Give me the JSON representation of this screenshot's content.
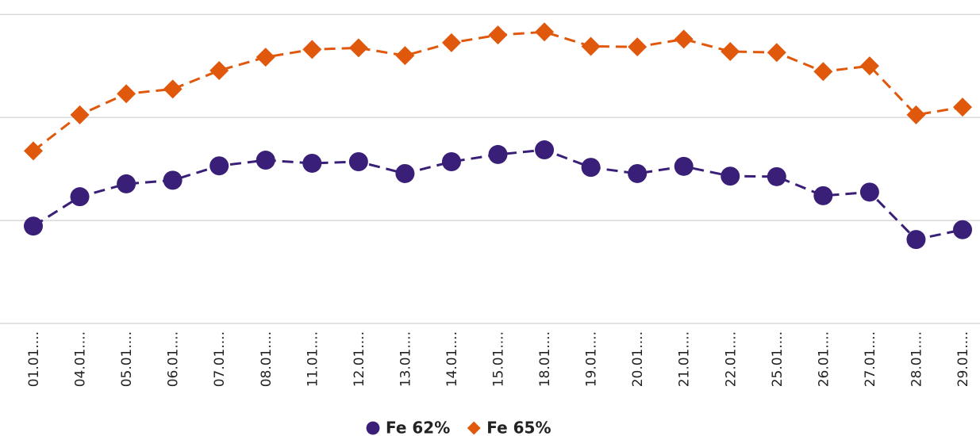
{
  "chart_data": {
    "type": "line",
    "categories": [
      "01.01....",
      "04.01....",
      "05.01....",
      "06.01....",
      "07.01....",
      "08.01....",
      "11.01....",
      "12.01....",
      "13.01....",
      "14.01....",
      "15.01....",
      "18.01....",
      "19.01....",
      "20.01....",
      "21.01....",
      "22.01....",
      "25.01....",
      "26.01....",
      "27.01....",
      "28.01....",
      "29.01...."
    ],
    "series": [
      {
        "name": "Fe 62%",
        "color": "#3a1f78",
        "marker": "circle",
        "values": [
          128.9,
          134.6,
          137.1,
          137.8,
          140.6,
          141.7,
          141.1,
          141.4,
          139.1,
          141.4,
          142.8,
          143.7,
          140.3,
          139.1,
          140.5,
          138.6,
          138.5,
          134.8,
          135.5,
          126.3,
          128.2
        ]
      },
      {
        "name": "Fe 65%",
        "color": "#e0580c",
        "marker": "diamond",
        "values": [
          143.5,
          150.5,
          154.6,
          155.5,
          159.1,
          161.7,
          163.2,
          163.5,
          162.0,
          164.5,
          166.0,
          166.6,
          163.8,
          163.7,
          165.2,
          162.8,
          162.6,
          158.9,
          160.0,
          150.5,
          152.0
        ]
      }
    ],
    "ylim": [
      110,
      172.8
    ],
    "yticks": [
      110,
      130,
      150,
      170
    ],
    "grid": true,
    "legend": "bottom"
  }
}
